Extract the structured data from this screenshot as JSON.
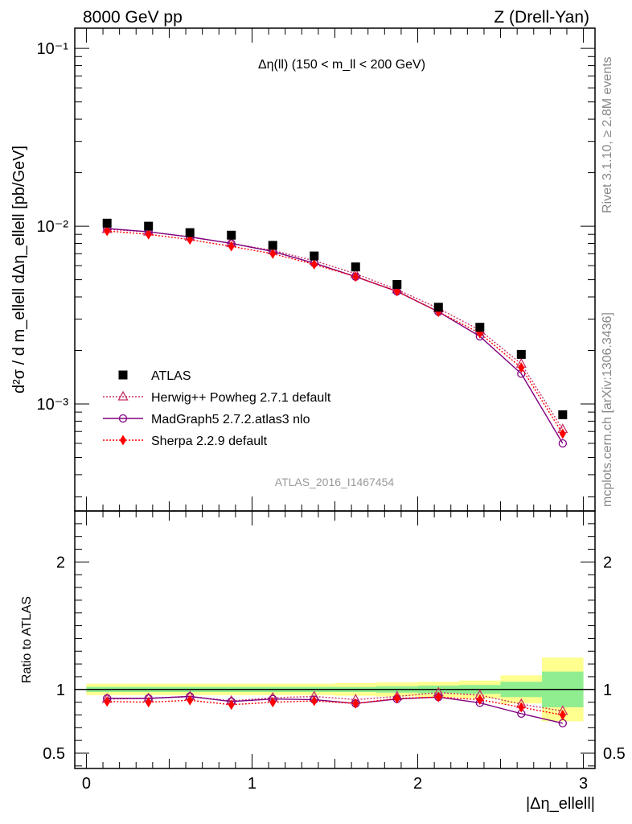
{
  "header": {
    "left": "8000 GeV pp",
    "right": "Z (Drell-Yan)"
  },
  "side_labels": {
    "rivet": "Rivet 3.1.10, ≥ 2.8M events",
    "mcplots": "mcplots.cern.ch [arXiv:1306.3436]"
  },
  "chart_data": [
    {
      "type": "scatter",
      "panel": "main",
      "title": "Δη(ll) (150 < m_ll < 200 GeV)",
      "ylabel": "d²σ / d m_ellell dΔη_ellell [pb/GeV]",
      "yscale": "log",
      "ylim": [
        0.00025,
        0.13
      ],
      "xlim": [
        -0.07,
        3.07
      ],
      "yticks": [
        "10⁻¹",
        "10⁻²",
        "10⁻³"
      ],
      "watermark": "ATLAS_2016_I1467454",
      "legend_position": "lower-left",
      "x": [
        0.125,
        0.375,
        0.625,
        0.875,
        1.125,
        1.375,
        1.625,
        1.875,
        2.125,
        2.375,
        2.625,
        2.875
      ],
      "series": [
        {
          "name": "ATLAS",
          "color": "#000000",
          "marker": "square",
          "values": [
            0.0104,
            0.01,
            0.0092,
            0.0089,
            0.0078,
            0.0068,
            0.0059,
            0.0047,
            0.0035,
            0.0027,
            0.0019,
            0.00087
          ]
        },
        {
          "name": "Herwig++ Powheg 2.7.1 default",
          "color": "#c83264",
          "marker": "open-triangle",
          "dash": "dotted",
          "values": [
            0.0096,
            0.0093,
            0.0087,
            0.008,
            0.0073,
            0.0064,
            0.0054,
            0.0044,
            0.00345,
            0.0026,
            0.00168,
            0.00072
          ]
        },
        {
          "name": "MadGraph5 2.7.2.atlas3 nlo",
          "color": "#800080",
          "marker": "open-circle",
          "dash": "solid",
          "values": [
            0.0097,
            0.0093,
            0.0087,
            0.008,
            0.0072,
            0.0062,
            0.0052,
            0.0043,
            0.0033,
            0.0024,
            0.00148,
            0.0006
          ]
        },
        {
          "name": "Sherpa 2.2.9 default",
          "color": "#ff0000",
          "marker": "diamond",
          "dash": "dotted",
          "values": [
            0.0094,
            0.009,
            0.0084,
            0.0077,
            0.007,
            0.0061,
            0.0052,
            0.0043,
            0.0033,
            0.0025,
            0.0016,
            0.00068
          ]
        }
      ]
    },
    {
      "type": "scatter",
      "panel": "ratio",
      "ylabel": "Ratio to ATLAS",
      "xlabel": "|Δη_ellell|",
      "ylim": [
        0.38,
        2.4
      ],
      "xlim": [
        -0.07,
        3.07
      ],
      "x": [
        0.125,
        0.375,
        0.625,
        0.875,
        1.125,
        1.375,
        1.625,
        1.875,
        2.125,
        2.375,
        2.625,
        2.875
      ],
      "bands": {
        "stat_color": "#90ee90",
        "total_color": "#ffff90",
        "x_edges": [
          0.0,
          0.25,
          0.5,
          0.75,
          1.0,
          1.25,
          1.5,
          1.75,
          2.0,
          2.25,
          2.5,
          2.75,
          3.0
        ],
        "stat_halfwidth": [
          0.02,
          0.02,
          0.02,
          0.02,
          0.02,
          0.02,
          0.02,
          0.025,
          0.03,
          0.035,
          0.06,
          0.14
        ],
        "total_halfwidth": [
          0.045,
          0.045,
          0.045,
          0.045,
          0.045,
          0.045,
          0.05,
          0.055,
          0.06,
          0.07,
          0.11,
          0.25
        ]
      },
      "series": [
        {
          "name": "Herwig++ Powheg 2.7.1 default",
          "values": [
            0.925,
            0.93,
            0.945,
            0.91,
            0.935,
            0.945,
            0.92,
            0.945,
            0.975,
            0.955,
            0.885,
            0.83
          ]
        },
        {
          "name": "MadGraph5 2.7.2.atlas3 nlo",
          "values": [
            0.93,
            0.93,
            0.945,
            0.905,
            0.925,
            0.92,
            0.89,
            0.925,
            0.94,
            0.895,
            0.81,
            0.735
          ]
        },
        {
          "name": "Sherpa 2.2.9 default",
          "values": [
            0.905,
            0.9,
            0.915,
            0.88,
            0.9,
            0.91,
            0.89,
            0.93,
            0.94,
            0.92,
            0.86,
            0.8
          ]
        }
      ]
    }
  ]
}
